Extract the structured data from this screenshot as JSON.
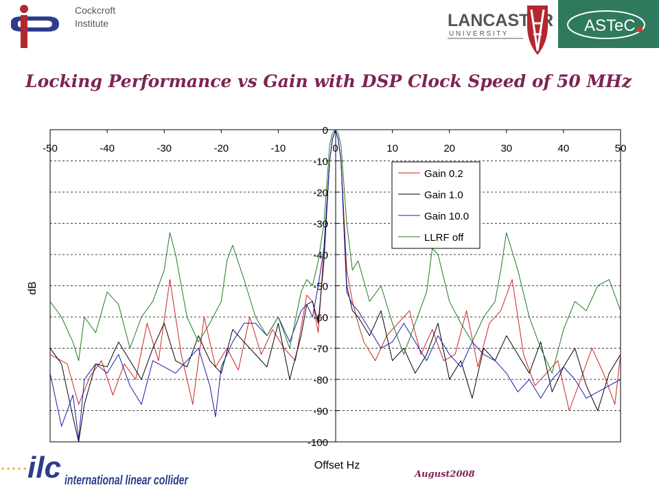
{
  "header": {
    "institute_name_line1": "Cockcroft",
    "institute_name_line2": "Institute",
    "lancaster_line1": "LANCASTER",
    "lancaster_line2": "U N I V E R S I T Y",
    "astec_label": "ASTeC",
    "title": "Locking Performance vs Gain with DSP Clock Speed of 50 MHz"
  },
  "footer": {
    "ilc_mark": "ilc",
    "ilc_text": "international linear collider",
    "date": "August2008"
  },
  "colors": {
    "title": "#7d2452",
    "gain_0_2": "#cc2222",
    "gain_1_0": "#000000",
    "gain_10_0": "#1a1aa6",
    "llrf_off": "#1f7a1f"
  },
  "chart_data": {
    "type": "line",
    "title": "",
    "xlabel": "Offset Hz",
    "ylabel": "dB",
    "xlim": [
      -50,
      50
    ],
    "ylim": [
      -100,
      0
    ],
    "x_ticks": [
      -50,
      -40,
      -30,
      -20,
      -10,
      0,
      10,
      20,
      30,
      40,
      50
    ],
    "y_ticks": [
      0,
      -10,
      -20,
      -30,
      -40,
      -50,
      -60,
      -70,
      -80,
      -90,
      -100
    ],
    "grid": "horizontal dashed",
    "legend_position": "upper-right",
    "series": [
      {
        "name": "Gain 0.2",
        "color": "#cc2222",
        "x": [
          -50,
          -47,
          -45,
          -43,
          -41,
          -39,
          -37,
          -35,
          -33,
          -31,
          -29,
          -27,
          -25,
          -23,
          -21,
          -19,
          -17,
          -15,
          -13,
          -11,
          -9,
          -7,
          -5,
          -4,
          -3,
          -2,
          -1,
          -0.5,
          0,
          0.5,
          1,
          2,
          3,
          4,
          5,
          7,
          9,
          11,
          13,
          15,
          17,
          19,
          21,
          23,
          25,
          27,
          29,
          31,
          33,
          35,
          37,
          39,
          41,
          43,
          45,
          47,
          49,
          50
        ],
        "y": [
          -72,
          -75,
          -88,
          -79,
          -74,
          -85,
          -75,
          -80,
          -62,
          -74,
          -48,
          -72,
          -88,
          -60,
          -76,
          -70,
          -77,
          -60,
          -72,
          -64,
          -70,
          -74,
          -53,
          -55,
          -65,
          -38,
          -10,
          -3,
          0,
          -3,
          -10,
          -45,
          -55,
          -62,
          -68,
          -74,
          -66,
          -62,
          -58,
          -72,
          -64,
          -74,
          -72,
          -58,
          -76,
          -62,
          -58,
          -48,
          -72,
          -82,
          -78,
          -74,
          -90,
          -80,
          -70,
          -78,
          -88,
          -72
        ]
      },
      {
        "name": "Gain 1.0",
        "color": "#000000",
        "x": [
          -50,
          -48,
          -46,
          -45,
          -44,
          -42,
          -40,
          -38,
          -36,
          -34,
          -32,
          -30,
          -28,
          -26,
          -24,
          -22,
          -20,
          -18,
          -16,
          -14,
          -12,
          -10,
          -8,
          -6,
          -5,
          -4,
          -3,
          -2,
          -1,
          -0.5,
          0,
          0.5,
          1,
          2,
          3,
          4,
          6,
          8,
          10,
          12,
          14,
          16,
          18,
          20,
          22,
          24,
          26,
          28,
          30,
          32,
          34,
          36,
          38,
          40,
          42,
          44,
          46,
          48,
          50
        ],
        "y": [
          -70,
          -75,
          -92,
          -100,
          -88,
          -75,
          -76,
          -68,
          -74,
          -80,
          -70,
          -62,
          -74,
          -76,
          -66,
          -74,
          -78,
          -64,
          -68,
          -72,
          -76,
          -62,
          -80,
          -66,
          -56,
          -55,
          -62,
          -42,
          -10,
          -3,
          0,
          -3,
          -10,
          -50,
          -58,
          -60,
          -66,
          -58,
          -74,
          -70,
          -78,
          -72,
          -62,
          -80,
          -74,
          -86,
          -70,
          -74,
          -66,
          -72,
          -78,
          -68,
          -84,
          -76,
          -70,
          -82,
          -90,
          -78,
          -72
        ]
      },
      {
        "name": "Gain 10.0",
        "color": "#1a1aa6",
        "x": [
          -50,
          -48,
          -46,
          -45,
          -44,
          -42,
          -40,
          -38,
          -36,
          -34,
          -32,
          -30,
          -28,
          -26,
          -24,
          -22,
          -21,
          -20,
          -18,
          -16,
          -14,
          -12,
          -10,
          -8,
          -6,
          -5,
          -4,
          -3,
          -2,
          -1,
          -0.5,
          0,
          0.5,
          1,
          2,
          3,
          4,
          6,
          8,
          10,
          12,
          14,
          16,
          18,
          20,
          22,
          24,
          26,
          28,
          30,
          32,
          34,
          36,
          38,
          40,
          42,
          44,
          46,
          48,
          50
        ],
        "y": [
          -78,
          -95,
          -85,
          -99,
          -80,
          -75,
          -78,
          -72,
          -82,
          -88,
          -74,
          -76,
          -78,
          -74,
          -70,
          -82,
          -92,
          -76,
          -68,
          -62,
          -62,
          -66,
          -60,
          -68,
          -58,
          -56,
          -60,
          -50,
          -38,
          -10,
          -3,
          0,
          -3,
          -10,
          -52,
          -56,
          -58,
          -64,
          -70,
          -68,
          -62,
          -68,
          -74,
          -66,
          -72,
          -76,
          -68,
          -72,
          -74,
          -78,
          -84,
          -80,
          -86,
          -80,
          -76,
          -80,
          -86,
          -84,
          -82,
          -80
        ]
      },
      {
        "name": "LLRF off",
        "color": "#1f7a1f",
        "x": [
          -50,
          -48,
          -46,
          -45,
          -44,
          -42,
          -40,
          -38,
          -36,
          -34,
          -32,
          -30,
          -29,
          -28,
          -26,
          -24,
          -22,
          -20,
          -19,
          -18,
          -16,
          -14,
          -12,
          -10,
          -8,
          -6,
          -5,
          -4,
          -3,
          -2,
          -1,
          -0.5,
          0,
          0.5,
          1,
          2,
          3,
          4,
          6,
          8,
          10,
          12,
          14,
          16,
          17,
          18,
          20,
          22,
          24,
          26,
          28,
          29,
          30,
          32,
          34,
          36,
          38,
          40,
          42,
          44,
          46,
          48,
          50
        ],
        "y": [
          -55,
          -60,
          -68,
          -74,
          -60,
          -65,
          -52,
          -56,
          -70,
          -60,
          -55,
          -45,
          -33,
          -40,
          -60,
          -68,
          -62,
          -55,
          -42,
          -37,
          -48,
          -60,
          -66,
          -60,
          -70,
          -52,
          -48,
          -50,
          -42,
          -30,
          -5,
          -1,
          0,
          -1,
          -5,
          -30,
          -45,
          -42,
          -55,
          -50,
          -62,
          -72,
          -62,
          -52,
          -38,
          -40,
          -55,
          -62,
          -68,
          -60,
          -55,
          -45,
          -33,
          -45,
          -60,
          -70,
          -78,
          -64,
          -55,
          -58,
          -50,
          -48,
          -58
        ]
      }
    ]
  }
}
